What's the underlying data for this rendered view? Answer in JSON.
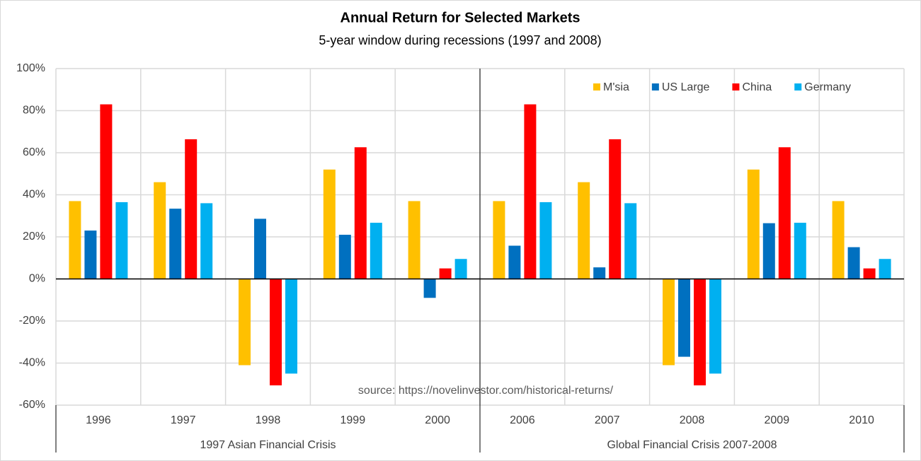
{
  "chart_data": {
    "type": "bar",
    "title": "Annual Return for Selected Markets",
    "subtitle": "5-year window during recessions (1997 and 2008)",
    "annotation": "source: https://novelinvestor.com/historical-returns/",
    "groups": [
      {
        "name": "1997 Asian Financial Crisis",
        "categories": [
          "1996",
          "1997",
          "1998",
          "1999",
          "2000"
        ]
      },
      {
        "name": "Global Financial Crisis 2007-2008",
        "categories": [
          "2006",
          "2007",
          "2008",
          "2009",
          "2010"
        ]
      }
    ],
    "series": [
      {
        "name": "M'sia",
        "color": "#FFC000",
        "values": [
          37,
          46,
          -41,
          52,
          37,
          37,
          46,
          -41,
          52,
          37
        ]
      },
      {
        "name": "US Large",
        "color": "#0070C0",
        "values": [
          23,
          33.4,
          28.6,
          21,
          -9,
          15.8,
          5.5,
          -37,
          26.5,
          15.1
        ]
      },
      {
        "name": "China",
        "color": "#FF0000",
        "values": [
          83,
          66.4,
          -50.6,
          62.6,
          5,
          83,
          66.4,
          -50.6,
          62.6,
          5
        ]
      },
      {
        "name": "Germany",
        "color": "#00B0F0",
        "values": [
          36.5,
          36,
          -45,
          26.7,
          9.5,
          36.5,
          36,
          -45,
          26.7,
          9.5
        ]
      }
    ],
    "ylim": [
      -60,
      100
    ],
    "yticks": [
      {
        "value": -60,
        "label": "-60%"
      },
      {
        "value": -40,
        "label": "-40%"
      },
      {
        "value": -20,
        "label": "-20%"
      },
      {
        "value": 0,
        "label": "0%"
      },
      {
        "value": 20,
        "label": "20%"
      },
      {
        "value": 40,
        "label": "40%"
      },
      {
        "value": 60,
        "label": "60%"
      },
      {
        "value": 80,
        "label": "80%"
      },
      {
        "value": 100,
        "label": "100%"
      }
    ],
    "grid": true,
    "legend": "top-right"
  }
}
